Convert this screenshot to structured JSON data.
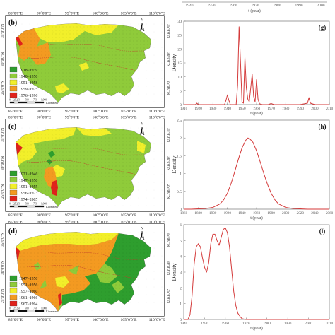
{
  "colors": {
    "c1": "#2e9e2e",
    "c2": "#8fcb3a",
    "c3": "#f2ef2a",
    "c4": "#f39a21",
    "c5": "#e0221c",
    "density_line": "#d43a3a",
    "map_frame": "#222222"
  },
  "top_strip": {
    "x_ticks": [
      "1940",
      "1950",
      "1960",
      "1970",
      "1980",
      "1990",
      "2000"
    ],
    "xlabel": "t (year)"
  },
  "maps": [
    {
      "panel_label": "(b)",
      "lon_ticks": [
        "85°0'0\"E",
        "90°0'0\"E",
        "95°0'0\"E",
        "100°0'0\"E",
        "105°0'0\"E",
        "110°0'0\"E"
      ],
      "lat_ticks": [
        "35°0'0\"N",
        "30°0'0\"N",
        "25°0'0\"N",
        "20°0'0\"N"
      ],
      "legend": [
        "1918~1939",
        "1940~1950",
        "1951~1958",
        "1959~1975",
        "1976~1996"
      ],
      "scale_numbers": [
        "0",
        "125",
        "250",
        "500",
        "750",
        "1,000"
      ],
      "scale_unit": "Kilometers",
      "north": "N"
    },
    {
      "panel_label": "(c)",
      "lon_ticks": [
        "85°0'0\"E",
        "90°0'0\"E",
        "95°0'0\"E",
        "100°0'0\"E",
        "105°0'0\"E",
        "110°0'0\"E"
      ],
      "lat_ticks": [
        "35°0'0\"N",
        "30°0'0\"N",
        "25°0'0\"N",
        "20°0'0\"N"
      ],
      "legend": [
        "1921~1946",
        "1947~1950",
        "1951~1955",
        "1956~1973",
        "1974~2005"
      ],
      "scale_numbers": [
        "0",
        "125",
        "250",
        "500",
        "750",
        "1,000"
      ],
      "scale_unit": "Kilometers",
      "north": "N"
    },
    {
      "panel_label": "(d)",
      "lon_ticks": [
        "85°0'0\"E",
        "90°0'0\"E",
        "95°0'0\"E",
        "100°0'0\"E",
        "105°0'0\"E",
        "110°0'0\"E"
      ],
      "lat_ticks": [
        "35°0'0\"N",
        "30°0'0\"N",
        "25°0'0\"N",
        "20°0'0\"N"
      ],
      "legend": [
        "1947~1950",
        "1951~1956",
        "1957~1960",
        "1961~1966",
        "1967~1994"
      ],
      "scale_numbers": [
        "0",
        "125",
        "250",
        "500",
        "750",
        "1,000"
      ],
      "scale_unit": "Kilometers",
      "north": "N"
    }
  ],
  "chart_data": [
    {
      "type": "line",
      "panel_label": "(g)",
      "ylabel": "Density",
      "xlabel": "t (year)",
      "xlim": [
        1910,
        2010
      ],
      "ylim": [
        0,
        30
      ],
      "x_ticks": [
        1910,
        1920,
        1930,
        1940,
        1950,
        1960,
        1970,
        1980,
        1990,
        2000,
        2010
      ],
      "y_ticks": [
        0,
        5,
        10,
        15,
        20,
        25,
        30
      ],
      "grid": false,
      "series": [
        {
          "x": [
            1910,
            1918,
            1919,
            1920,
            1938,
            1939,
            1940,
            1941,
            1942,
            1946,
            1947,
            1948,
            1949,
            1950,
            1951,
            1952,
            1953,
            1954,
            1955,
            1956,
            1957,
            1958,
            1959,
            1960,
            1961,
            1962,
            1964,
            1968,
            1970,
            1972,
            1980,
            1990,
            1995,
            1996,
            1997,
            2000,
            2010
          ],
          "y": [
            0,
            0,
            0.5,
            0,
            0,
            1.5,
            3.5,
            1.5,
            0,
            0,
            7,
            28,
            15,
            1,
            0.5,
            17,
            6,
            2,
            1,
            6,
            11,
            3,
            1,
            9,
            2,
            0.3,
            0,
            0,
            0.4,
            0,
            0,
            0,
            0.5,
            2.5,
            0.5,
            0,
            0
          ]
        }
      ]
    },
    {
      "type": "line",
      "panel_label": "(h)",
      "ylabel": "Density",
      "xlabel": "t (year)",
      "xlim": [
        1860,
        2060
      ],
      "ylim": [
        0,
        2.5
      ],
      "x_ticks": [
        1860,
        1880,
        1900,
        1920,
        1940,
        1960,
        1980,
        2000,
        2020,
        2040,
        2060
      ],
      "y_ticks": [
        0,
        0.5,
        1,
        1.5,
        2,
        2.5
      ],
      "grid": false,
      "series": [
        {
          "x": [
            1860,
            1870,
            1880,
            1890,
            1900,
            1910,
            1915,
            1920,
            1925,
            1930,
            1935,
            1940,
            1945,
            1948,
            1950,
            1955,
            1960,
            1965,
            1970,
            1975,
            1980,
            1985,
            1990,
            2000,
            2010,
            2020,
            2030,
            2040,
            2060
          ],
          "y": [
            0,
            0,
            0.01,
            0.02,
            0.05,
            0.15,
            0.27,
            0.45,
            0.72,
            1.05,
            1.4,
            1.72,
            1.93,
            2.0,
            1.99,
            1.88,
            1.64,
            1.33,
            1.0,
            0.7,
            0.45,
            0.27,
            0.15,
            0.05,
            0.02,
            0.01,
            0,
            0,
            0
          ]
        }
      ]
    },
    {
      "type": "line",
      "panel_label": "(i)",
      "ylabel": "Density",
      "xlabel": "t (year)",
      "xlim": [
        1940,
        2010
      ],
      "ylim": [
        0,
        6
      ],
      "x_ticks": [
        1940,
        1950,
        1960,
        1970,
        1980,
        1990,
        2000,
        2010
      ],
      "y_ticks": [
        0,
        1,
        2,
        3,
        4,
        5,
        6
      ],
      "grid": false,
      "series": [
        {
          "x": [
            1940,
            1942,
            1943,
            1944,
            1945,
            1946,
            1947,
            1948,
            1949,
            1950,
            1951,
            1952,
            1953,
            1954,
            1955,
            1956,
            1957,
            1958,
            1959,
            1960,
            1961,
            1962,
            1963,
            1964,
            1965,
            1966,
            1967,
            1968,
            1970,
            1975,
            1980,
            2000,
            2010
          ],
          "y": [
            0,
            0,
            0.3,
            1.5,
            3.5,
            4.6,
            4.8,
            4.6,
            3.9,
            3.3,
            3.0,
            3.6,
            4.8,
            5.4,
            5.4,
            5.0,
            4.7,
            5.2,
            5.7,
            5.8,
            5.5,
            4.6,
            3.2,
            1.8,
            0.9,
            0.4,
            0.2,
            0.05,
            0,
            0,
            0,
            0,
            0
          ]
        }
      ]
    }
  ]
}
